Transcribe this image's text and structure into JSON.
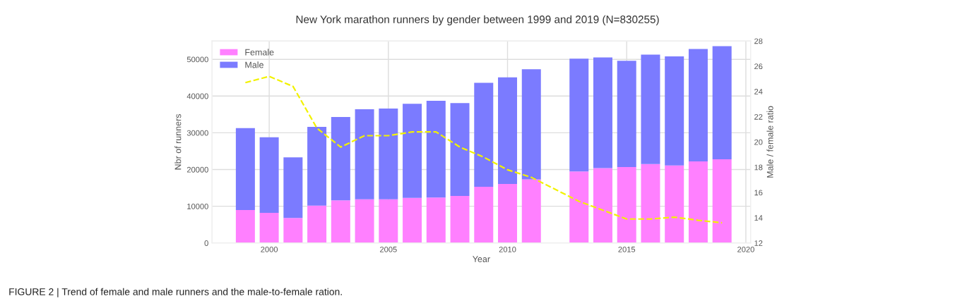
{
  "chart_data": {
    "type": "bar",
    "title": "New York marathon runners by gender between 1999 and 2019 (N=830255)",
    "xlabel": "Year",
    "ylabel": "Nbr of runners",
    "y2label": "Male / female ratio",
    "x": [
      1999,
      2000,
      2001,
      2002,
      2003,
      2004,
      2005,
      2006,
      2007,
      2008,
      2009,
      2010,
      2011,
      2013,
      2014,
      2015,
      2016,
      2017,
      2018,
      2019
    ],
    "stacked": true,
    "series": [
      {
        "name": "Female",
        "color": "#ff80ff",
        "values": [
          9000,
          8200,
          6800,
          10200,
          11600,
          11900,
          11900,
          12300,
          12400,
          12800,
          15300,
          16100,
          17300,
          19500,
          20400,
          20700,
          21500,
          21100,
          22200,
          22800
        ]
      },
      {
        "name": "Male",
        "color": "#7b7bff",
        "values": [
          22300,
          20600,
          16500,
          21400,
          22700,
          24500,
          24700,
          25600,
          26300,
          25300,
          28300,
          29000,
          30000,
          30700,
          30100,
          28900,
          29800,
          29700,
          30600,
          30800
        ]
      },
      {
        "type": "line",
        "axis": "y2",
        "color": "#f2f200",
        "line_style": "dashed",
        "x": [
          1999,
          2000,
          2001,
          2002,
          2003,
          2004,
          2005,
          2006,
          2007,
          2008,
          2009,
          2010,
          2011,
          2013,
          2014,
          2015,
          2016,
          2017,
          2018,
          2019
        ],
        "values": [
          24.7,
          25.2,
          24.4,
          21.1,
          19.6,
          20.5,
          20.5,
          20.8,
          20.8,
          19.6,
          18.8,
          17.8,
          17.2,
          15.3,
          14.6,
          13.9,
          13.9,
          14.05,
          13.8,
          13.6
        ]
      }
    ],
    "xlim": [
      1997.6,
      2020.2
    ],
    "xticks": [
      2000,
      2005,
      2010,
      2015,
      2020
    ],
    "ylim": [
      0,
      55000
    ],
    "yticks": [
      0,
      10000,
      20000,
      30000,
      40000,
      50000
    ],
    "y2lim": [
      12,
      28
    ],
    "y2ticks": [
      12,
      14,
      16,
      18,
      20,
      22,
      24,
      26,
      28
    ],
    "grid": true,
    "legend": "top left",
    "annotations": [
      "FIGURE 2 | Trend of female and male runners and the male-to-female ration."
    ]
  }
}
